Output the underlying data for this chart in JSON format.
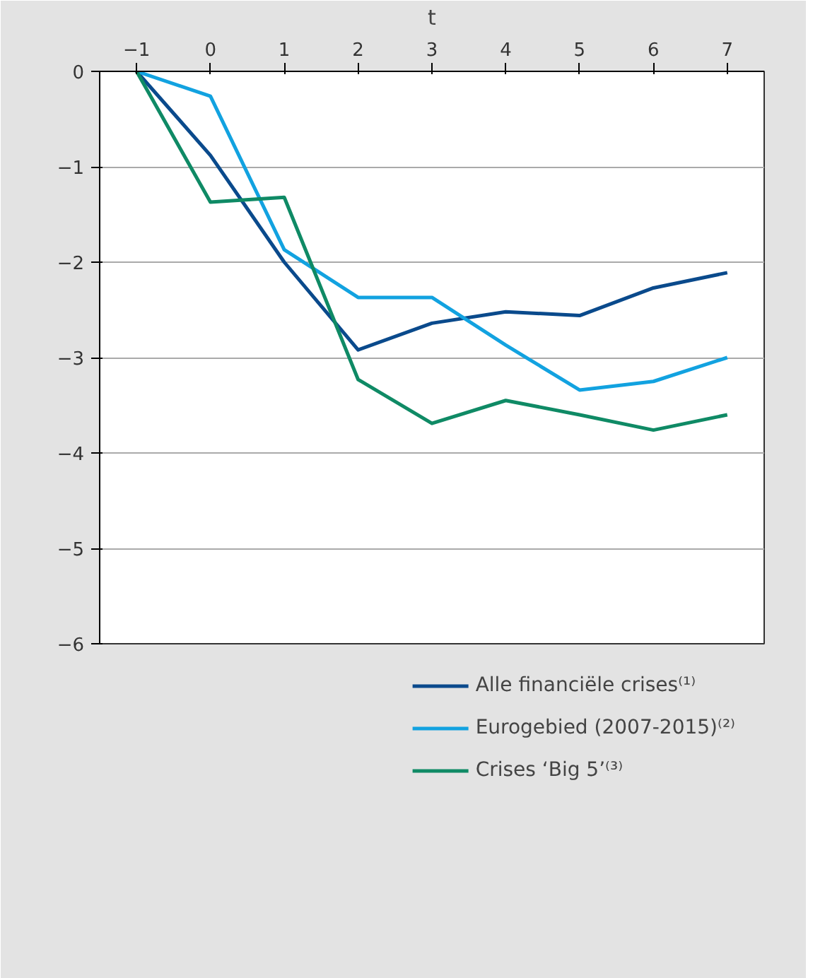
{
  "chart_data": {
    "type": "line",
    "xlabel": "t",
    "categories": [
      "−1",
      "0",
      "1",
      "2",
      "3",
      "4",
      "5",
      "6",
      "7"
    ],
    "series": [
      {
        "name": "Alle financiële crises⁽¹⁾",
        "color": "#0a4a8c",
        "values": [
          0,
          -0.88,
          -2.0,
          -2.92,
          -2.64,
          -2.52,
          -2.56,
          -2.27,
          -2.11
        ]
      },
      {
        "name": "Eurogebied (2007-2015)⁽²⁾",
        "color": "#12a2e0",
        "values": [
          0,
          -0.26,
          -1.87,
          -2.37,
          -2.37,
          -2.87,
          -3.34,
          -3.25,
          -3.0
        ]
      },
      {
        "name": "Crises ‘Big 5’⁽³⁾",
        "color": "#0f8a65",
        "values": [
          0,
          -1.37,
          -1.32,
          -3.23,
          -3.69,
          -3.45,
          -3.6,
          -3.76,
          -3.6
        ]
      }
    ],
    "ylim": [
      -6,
      0
    ],
    "yticks": [
      {
        "value": 0,
        "label": "0"
      },
      {
        "value": -1,
        "label": "−1"
      },
      {
        "value": -2,
        "label": "−2"
      },
      {
        "value": -3,
        "label": "−3"
      },
      {
        "value": -4,
        "label": "−4"
      },
      {
        "value": -5,
        "label": "−5"
      },
      {
        "value": -6,
        "label": "−6"
      }
    ],
    "grid": "y",
    "legend": "bottom",
    "marker": "none",
    "line_style": "solid"
  }
}
